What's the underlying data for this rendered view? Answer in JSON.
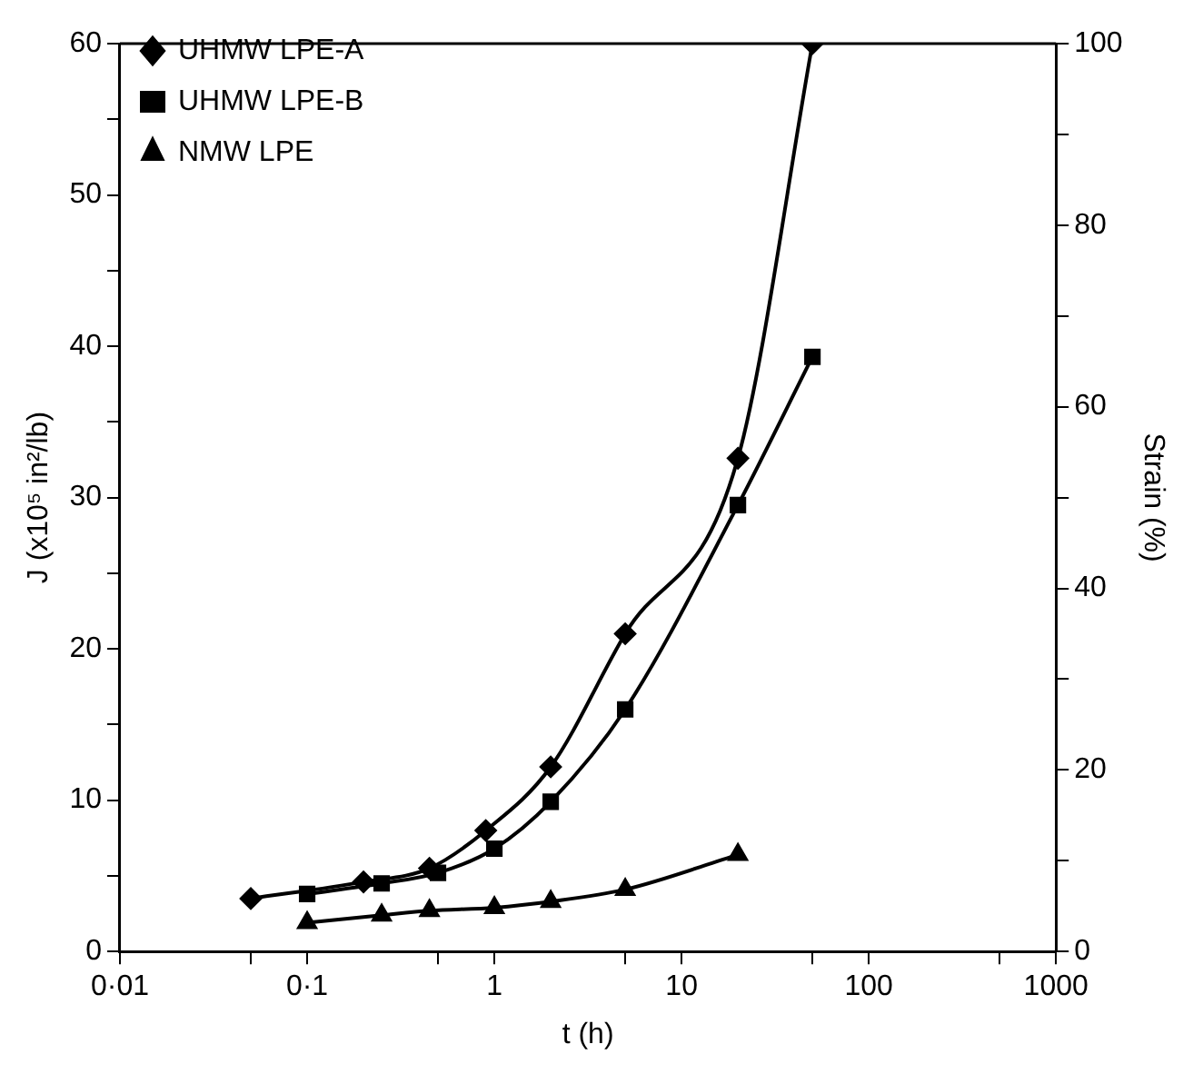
{
  "chart_data": {
    "type": "line",
    "xlabel": "t (h)",
    "ylabel": "J (x10⁵ in²/lb)",
    "y2label": "Strain (%)",
    "log": "x",
    "grid": false,
    "legend": "top left",
    "line_style": "solid",
    "xlim": [
      0.01,
      1000
    ],
    "xticks": [
      {
        "value": 0.01,
        "label": "0·01"
      },
      {
        "value": 0.05,
        "label": null
      },
      {
        "value": 0.1,
        "label": "0·1"
      },
      {
        "value": 0.5,
        "label": null
      },
      1,
      {
        "value": 5,
        "label": null
      },
      10,
      {
        "value": 50,
        "label": null
      },
      100,
      {
        "value": 500,
        "label": null
      },
      1000
    ],
    "ylim": [
      0,
      60
    ],
    "yticks": [
      0,
      {
        "value": 5,
        "label": null
      },
      10,
      {
        "value": 15,
        "label": null
      },
      20,
      {
        "value": 25,
        "label": null
      },
      30,
      {
        "value": 35,
        "label": null
      },
      40,
      {
        "value": 45,
        "label": null
      },
      50,
      {
        "value": 55,
        "label": null
      },
      60
    ],
    "y2lim": [
      0,
      100
    ],
    "y2ticks": [
      0,
      {
        "value": 10,
        "label": null
      },
      20,
      {
        "value": 30,
        "label": null
      },
      40,
      {
        "value": 50,
        "label": null
      },
      60,
      {
        "value": 70,
        "label": null
      },
      80,
      {
        "value": 90,
        "label": null
      },
      100
    ],
    "series": [
      {
        "name": "UHMW LPE-A",
        "color": "#000000",
        "marker": "diamond",
        "x": [
          0.05,
          0.2,
          0.45,
          0.9,
          2,
          5,
          20,
          50
        ],
        "values": [
          3.5,
          4.6,
          5.5,
          8.0,
          12.2,
          21,
          32.6,
          60
        ]
      },
      {
        "name": "UHMW LPE-B",
        "color": "#000000",
        "marker": "square",
        "x": [
          0.1,
          0.25,
          0.5,
          1,
          2,
          5,
          20,
          50
        ],
        "values": [
          3.8,
          4.5,
          5.2,
          6.8,
          9.9,
          16,
          29.5,
          39.3
        ]
      },
      {
        "name": "NMW LPE",
        "color": "#000000",
        "marker": "triangle",
        "x": [
          0.1,
          0.25,
          0.45,
          1,
          2,
          5,
          20
        ],
        "values": [
          1.9,
          2.4,
          2.7,
          2.9,
          3.3,
          4.1,
          6.4
        ]
      }
    ]
  }
}
